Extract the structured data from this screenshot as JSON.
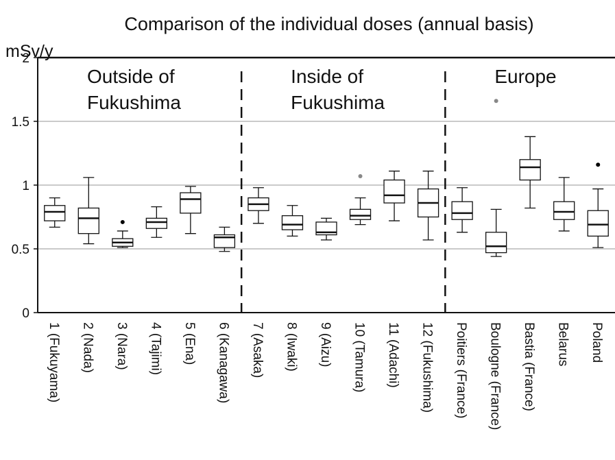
{
  "chart_data": {
    "type": "box",
    "title": "Comparison of the individual doses (annual basis)",
    "y_label": "mSv/y",
    "categories": [
      "1 (Fukuyama)",
      "2 (Nada)",
      "3 (Nara)",
      "4 (Tajimi)",
      "5 (Ena)",
      "6 (Kanagawa)",
      "7 (Asaka)",
      "8 (Iwaki)",
      "9 (Aizu)",
      "10 (Tamura)",
      "11 (Adachi)",
      "12 (Fukushima)",
      "Poitiers (France)",
      "Boulogne (France)",
      "Bastia (France)",
      "Belarus",
      "Poland"
    ],
    "boxes": [
      {
        "low": 0.67,
        "q1": 0.72,
        "median": 0.79,
        "q3": 0.84,
        "high": 0.9
      },
      {
        "low": 0.54,
        "q1": 0.62,
        "median": 0.74,
        "q3": 0.82,
        "high": 1.06
      },
      {
        "low": 0.51,
        "q1": 0.52,
        "median": 0.55,
        "q3": 0.58,
        "high": 0.64,
        "outlier": 0.71,
        "outlier_color": "#000000"
      },
      {
        "low": 0.59,
        "q1": 0.66,
        "median": 0.71,
        "q3": 0.74,
        "high": 0.83
      },
      {
        "low": 0.62,
        "q1": 0.78,
        "median": 0.89,
        "q3": 0.94,
        "high": 0.99
      },
      {
        "low": 0.48,
        "q1": 0.51,
        "median": 0.59,
        "q3": 0.61,
        "high": 0.67
      },
      {
        "low": 0.7,
        "q1": 0.8,
        "median": 0.85,
        "q3": 0.9,
        "high": 0.98
      },
      {
        "low": 0.6,
        "q1": 0.65,
        "median": 0.69,
        "q3": 0.76,
        "high": 0.84
      },
      {
        "low": 0.57,
        "q1": 0.61,
        "median": 0.63,
        "q3": 0.71,
        "high": 0.74
      },
      {
        "low": 0.69,
        "q1": 0.73,
        "median": 0.76,
        "q3": 0.81,
        "high": 0.9,
        "outlier": 1.07,
        "outlier_color": "#888888"
      },
      {
        "low": 0.72,
        "q1": 0.86,
        "median": 0.92,
        "q3": 1.04,
        "high": 1.11
      },
      {
        "low": 0.57,
        "q1": 0.75,
        "median": 0.86,
        "q3": 0.97,
        "high": 1.11
      },
      {
        "low": 0.63,
        "q1": 0.73,
        "median": 0.78,
        "q3": 0.87,
        "high": 0.98
      },
      {
        "low": 0.44,
        "q1": 0.47,
        "median": 0.52,
        "q3": 0.63,
        "high": 0.81,
        "outlier": 1.66,
        "outlier_color": "#888888"
      },
      {
        "low": 0.82,
        "q1": 1.04,
        "median": 1.14,
        "q3": 1.2,
        "high": 1.38
      },
      {
        "low": 0.64,
        "q1": 0.73,
        "median": 0.79,
        "q3": 0.87,
        "high": 1.06
      },
      {
        "low": 0.51,
        "q1": 0.6,
        "median": 0.69,
        "q3": 0.8,
        "high": 0.97,
        "outlier": 1.16,
        "outlier_color": "#000000"
      }
    ],
    "groups": [
      {
        "lines": [
          "Outside of",
          "Fukushima"
        ],
        "size": 6
      },
      {
        "lines": [
          "Inside of",
          "Fukushima"
        ],
        "size": 6
      },
      {
        "lines": [
          "Europe"
        ],
        "size": 5
      }
    ],
    "ylim": [
      0,
      2
    ],
    "yticks": [
      0,
      0.5,
      1,
      1.5,
      2
    ],
    "grid": true
  }
}
